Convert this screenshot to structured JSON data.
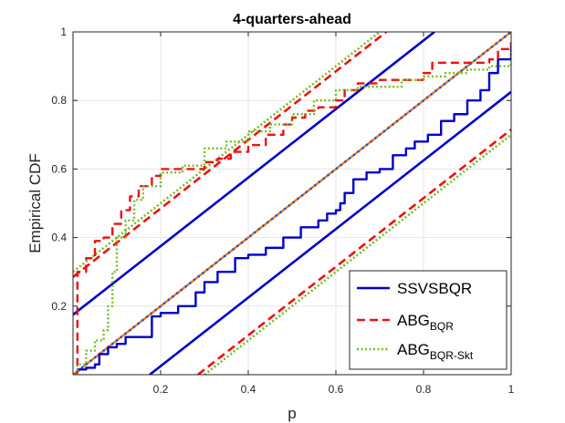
{
  "chart_data": {
    "type": "line",
    "title": "4-quarters-ahead",
    "xlabel": "p",
    "ylabel": "Empirical CDF",
    "xlim": [
      0,
      1
    ],
    "ylim": [
      0,
      1
    ],
    "xticks": [
      0.2,
      0.4,
      0.6,
      0.8,
      1
    ],
    "yticks": [
      0.2,
      0.4,
      0.6,
      0.8,
      1
    ],
    "xtick_labels": [
      "0.2",
      "0.4",
      "0.6",
      "0.8",
      "1"
    ],
    "ytick_labels": [
      "0.2",
      "0.4",
      "0.6",
      "0.8",
      "1"
    ],
    "grid": true,
    "legend_position": "bottom-right",
    "series": [
      {
        "name": "SSVSBQR",
        "color": "#0000cc",
        "style": "solid",
        "points": [
          [
            0,
            0
          ],
          [
            0.01,
            0.015
          ],
          [
            0.03,
            0.02
          ],
          [
            0.05,
            0.03
          ],
          [
            0.06,
            0.06
          ],
          [
            0.08,
            0.08
          ],
          [
            0.1,
            0.09
          ],
          [
            0.12,
            0.11
          ],
          [
            0.16,
            0.11
          ],
          [
            0.18,
            0.17
          ],
          [
            0.2,
            0.18
          ],
          [
            0.24,
            0.2
          ],
          [
            0.28,
            0.24
          ],
          [
            0.3,
            0.27
          ],
          [
            0.33,
            0.3
          ],
          [
            0.37,
            0.34
          ],
          [
            0.4,
            0.35
          ],
          [
            0.44,
            0.37
          ],
          [
            0.48,
            0.4
          ],
          [
            0.52,
            0.43
          ],
          [
            0.56,
            0.45
          ],
          [
            0.58,
            0.47
          ],
          [
            0.6,
            0.48
          ],
          [
            0.61,
            0.5
          ],
          [
            0.62,
            0.53
          ],
          [
            0.64,
            0.57
          ],
          [
            0.67,
            0.59
          ],
          [
            0.7,
            0.6
          ],
          [
            0.73,
            0.64
          ],
          [
            0.76,
            0.66
          ],
          [
            0.78,
            0.68
          ],
          [
            0.81,
            0.7
          ],
          [
            0.84,
            0.74
          ],
          [
            0.87,
            0.76
          ],
          [
            0.9,
            0.8
          ],
          [
            0.93,
            0.83
          ],
          [
            0.95,
            0.88
          ],
          [
            0.97,
            0.92
          ],
          [
            1,
            0.97
          ]
        ]
      },
      {
        "name": "ABG_BQR",
        "color": "#ee1111",
        "style": "dashed",
        "points": [
          [
            0,
            0
          ],
          [
            0.01,
            0.3
          ],
          [
            0.03,
            0.34
          ],
          [
            0.05,
            0.39
          ],
          [
            0.07,
            0.4
          ],
          [
            0.09,
            0.44
          ],
          [
            0.11,
            0.48
          ],
          [
            0.13,
            0.52
          ],
          [
            0.15,
            0.55
          ],
          [
            0.18,
            0.58
          ],
          [
            0.2,
            0.6
          ],
          [
            0.23,
            0.6
          ],
          [
            0.28,
            0.6
          ],
          [
            0.3,
            0.62
          ],
          [
            0.33,
            0.63
          ],
          [
            0.36,
            0.65
          ],
          [
            0.4,
            0.67
          ],
          [
            0.44,
            0.7
          ],
          [
            0.48,
            0.73
          ],
          [
            0.5,
            0.75
          ],
          [
            0.53,
            0.77
          ],
          [
            0.56,
            0.78
          ],
          [
            0.6,
            0.8
          ],
          [
            0.62,
            0.83
          ],
          [
            0.65,
            0.85
          ],
          [
            0.7,
            0.86
          ],
          [
            0.75,
            0.86
          ],
          [
            0.8,
            0.88
          ],
          [
            0.82,
            0.91
          ],
          [
            0.85,
            0.91
          ],
          [
            0.9,
            0.91
          ],
          [
            0.93,
            0.91
          ],
          [
            0.95,
            0.92
          ],
          [
            0.97,
            0.95
          ],
          [
            1,
            0.97
          ]
        ]
      },
      {
        "name": "ABG_BQR-Skt",
        "color": "#77bb22",
        "style": "dotted",
        "points": [
          [
            0,
            0
          ],
          [
            0.01,
            0.03
          ],
          [
            0.03,
            0.07
          ],
          [
            0.05,
            0.1
          ],
          [
            0.07,
            0.13
          ],
          [
            0.08,
            0.2
          ],
          [
            0.09,
            0.3
          ],
          [
            0.1,
            0.4
          ],
          [
            0.12,
            0.45
          ],
          [
            0.14,
            0.51
          ],
          [
            0.16,
            0.55
          ],
          [
            0.2,
            0.59
          ],
          [
            0.25,
            0.61
          ],
          [
            0.3,
            0.66
          ],
          [
            0.35,
            0.68
          ],
          [
            0.4,
            0.71
          ],
          [
            0.45,
            0.73
          ],
          [
            0.5,
            0.76
          ],
          [
            0.55,
            0.8
          ],
          [
            0.6,
            0.83
          ],
          [
            0.65,
            0.84
          ],
          [
            0.7,
            0.84
          ],
          [
            0.75,
            0.86
          ],
          [
            0.8,
            0.87
          ],
          [
            0.85,
            0.88
          ],
          [
            0.9,
            0.89
          ],
          [
            0.95,
            0.9
          ],
          [
            1,
            0.95
          ]
        ]
      }
    ],
    "reference_line": {
      "points": [
        [
          0,
          0
        ],
        [
          1,
          1
        ]
      ],
      "colors": [
        "#ee7722",
        "#0055cc"
      ],
      "style": "dotted"
    },
    "bands": [
      {
        "series": "SSVSBQR",
        "color": "#0000cc",
        "style": "solid",
        "lower": {
          "x1": 0.175,
          "x2": 1,
          "y2": 0.825
        },
        "upper": {
          "y1": 0.175,
          "x2": 0.825,
          "y2": 1
        }
      },
      {
        "series": "ABG_BQR",
        "color": "#ee1111",
        "style": "dashed",
        "lower": {
          "x1": 0.285,
          "x2": 1,
          "y2": 0.715
        },
        "upper": {
          "y1": 0.285,
          "x2": 0.715,
          "y2": 1
        }
      },
      {
        "series": "ABG_BQR-Skt",
        "color": "#77bb22",
        "style": "dotted",
        "lower": {
          "x1": 0.3,
          "x2": 1,
          "y2": 0.7
        },
        "upper": {
          "y1": 0.3,
          "x2": 0.7,
          "y2": 1
        }
      }
    ],
    "legend": [
      {
        "main": "SSVSBQR",
        "sub": ""
      },
      {
        "main": "ABG",
        "sub": "BQR"
      },
      {
        "main": "ABG",
        "sub": "BQR-Skt"
      }
    ]
  }
}
